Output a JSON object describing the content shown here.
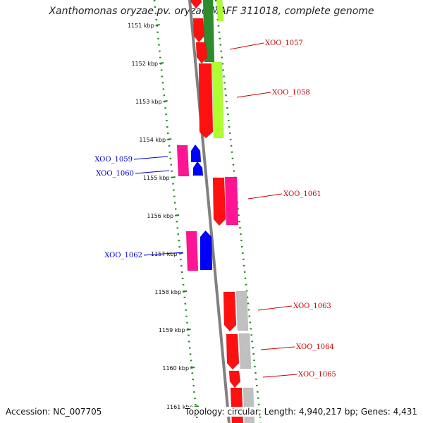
{
  "title": "Xanthomonas oryzae pv. oryzae MAFF 311018, complete genome",
  "footer": {
    "accession": "Accession: NC_007705",
    "topology": "Topology: circular; Length: 4,940,217 bp; Genes: 4,431"
  },
  "colors": {
    "backbone": "#808080",
    "dotted_guide": "#1f8a1f",
    "forward_label": "#cc0000",
    "reverse_label": "#0000cc",
    "red_gene": "#ff1010",
    "magenta_gene": "#ff1493",
    "blue_gene": "#0000ff",
    "green_gene": "#2e8b2e",
    "lime_gene": "#adff2f",
    "grey_gene": "#c0c0c0"
  },
  "ruler": [
    "1151 kbp",
    "1152 kbp",
    "1153 kbp",
    "1154 kbp",
    "1155 kbp",
    "1156 kbp",
    "1157 kbp",
    "1158 kbp",
    "1159 kbp",
    "1160 kbp",
    "1161 kbp"
  ],
  "genes": [
    {
      "label": "XOO_1057",
      "strand": "forward"
    },
    {
      "label": "XOO_1058",
      "strand": "forward"
    },
    {
      "label": "XOO_1059",
      "strand": "reverse"
    },
    {
      "label": "XOO_1060",
      "strand": "reverse"
    },
    {
      "label": "XOO_1061",
      "strand": "forward"
    },
    {
      "label": "XOO_1062",
      "strand": "reverse"
    },
    {
      "label": "XOO_1063",
      "strand": "forward"
    },
    {
      "label": "XOO_1064",
      "strand": "forward"
    },
    {
      "label": "XOO_1065",
      "strand": "forward"
    }
  ]
}
